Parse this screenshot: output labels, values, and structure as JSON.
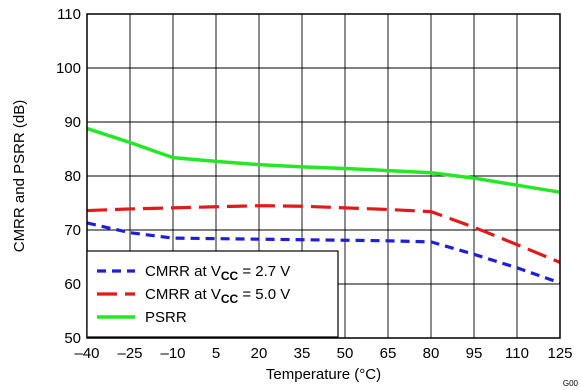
{
  "chart_data": {
    "type": "line",
    "xlabel": "Temperature (°C)",
    "ylabel": "CMRR and PSRR (dB)",
    "xlim": [
      -40,
      125
    ],
    "ylim": [
      50,
      110
    ],
    "x_ticks": [
      "–40",
      "–25",
      "–10",
      "5",
      "20",
      "35",
      "50",
      "65",
      "80",
      "95",
      "110",
      "125"
    ],
    "x_tick_values": [
      -40,
      -25,
      -10,
      5,
      20,
      35,
      50,
      65,
      80,
      95,
      110,
      125
    ],
    "y_ticks": [
      "50",
      "60",
      "70",
      "80",
      "90",
      "100",
      "110"
    ],
    "y_tick_values": [
      50,
      60,
      70,
      80,
      90,
      100,
      110
    ],
    "grid": true,
    "legend_position": "lower-left",
    "series": [
      {
        "name": "CMRR at V_CC = 2.7 V",
        "legend_main": "CMRR at V",
        "legend_sub": "CC",
        "legend_tail": " =  2.7 V",
        "color": "#1f1fd6",
        "style": "dotted",
        "x": [
          -40,
          -25,
          -10,
          5,
          20,
          35,
          50,
          65,
          80,
          95,
          110,
          125
        ],
        "y": [
          71.3,
          69.5,
          68.5,
          68.4,
          68.3,
          68.2,
          68.1,
          68.0,
          67.8,
          65.5,
          63.0,
          60.2
        ]
      },
      {
        "name": "CMRR at V_CC = 5.0 V",
        "legend_main": "CMRR at V",
        "legend_sub": "CC",
        "legend_tail": " =  5.0 V",
        "color": "#e01b1b",
        "style": "dashed",
        "x": [
          -40,
          -25,
          -10,
          5,
          20,
          35,
          50,
          65,
          80,
          95,
          110,
          125
        ],
        "y": [
          73.6,
          73.9,
          74.1,
          74.3,
          74.5,
          74.4,
          74.1,
          73.8,
          73.4,
          70.5,
          67.3,
          64.0
        ]
      },
      {
        "name": "PSRR",
        "legend_main": "PSRR",
        "legend_sub": "",
        "legend_tail": "",
        "color": "#27e627",
        "style": "solid",
        "x": [
          -40,
          -25,
          -10,
          5,
          20,
          35,
          50,
          65,
          80,
          95,
          110,
          125
        ],
        "y": [
          88.8,
          86.2,
          83.4,
          82.7,
          82.1,
          81.7,
          81.4,
          81.0,
          80.6,
          79.6,
          78.3,
          77.0
        ]
      }
    ]
  },
  "corner_label": "G00"
}
